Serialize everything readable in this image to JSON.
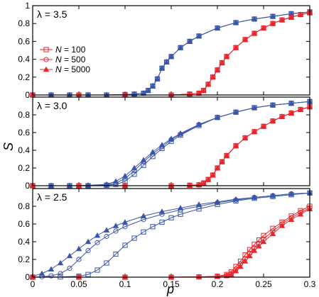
{
  "colors": {
    "blue": "#3a56a8",
    "red": "#e8262d",
    "frame": "#000000"
  },
  "legend": {
    "entries": [
      {
        "prefix": "N",
        "text": " = 100",
        "marker": "square"
      },
      {
        "prefix": "N",
        "text": " = 500",
        "marker": "circle"
      },
      {
        "prefix": "N",
        "text": " = 5000",
        "marker": "triangle"
      }
    ]
  },
  "chart_data": {
    "type": "line",
    "xlabel": "p",
    "ylabel": "S",
    "xlim": [
      0,
      0.3
    ],
    "xticks": [
      0,
      0.05,
      0.1,
      0.15,
      0.2,
      0.25,
      0.3
    ],
    "xtick_labels": [
      "0",
      "0.05",
      "0.1",
      "0.15",
      "0.2",
      "0.25",
      "0.3"
    ],
    "grid": false,
    "legend_position": "left, upper panel",
    "panels": [
      {
        "label": "λ = 3.5",
        "ylim": [
          0,
          1
        ],
        "yticks": [
          0,
          0.2,
          0.4,
          0.6,
          0.8,
          1
        ],
        "ytick_labels": [
          "0",
          "0.2",
          "0.4",
          "0.6",
          "0.8",
          "1"
        ],
        "series": [
          {
            "color": "blue",
            "marker": "square",
            "x": [
              0,
              0.02,
              0.04,
              0.06,
              0.08,
              0.1,
              0.11,
              0.12,
              0.125,
              0.13,
              0.135,
              0.14,
              0.145,
              0.15,
              0.16,
              0.17,
              0.18,
              0.2,
              0.22,
              0.24,
              0.26,
              0.28,
              0.3
            ],
            "y": [
              0,
              0,
              0,
              0,
              0,
              0.005,
              0.01,
              0.02,
              0.05,
              0.1,
              0.18,
              0.3,
              0.37,
              0.43,
              0.53,
              0.6,
              0.66,
              0.75,
              0.81,
              0.85,
              0.88,
              0.91,
              0.93
            ]
          },
          {
            "color": "blue",
            "marker": "circle",
            "x": [
              0,
              0.02,
              0.04,
              0.06,
              0.08,
              0.1,
              0.11,
              0.12,
              0.125,
              0.13,
              0.135,
              0.14,
              0.145,
              0.15,
              0.16,
              0.17,
              0.18,
              0.2,
              0.22,
              0.24,
              0.26,
              0.28,
              0.3
            ],
            "y": [
              0,
              0,
              0,
              0,
              0,
              0.005,
              0.01,
              0.02,
              0.05,
              0.1,
              0.18,
              0.3,
              0.37,
              0.43,
              0.53,
              0.6,
              0.66,
              0.75,
              0.81,
              0.85,
              0.88,
              0.91,
              0.93
            ]
          },
          {
            "color": "blue",
            "marker": "triangle",
            "x": [
              0,
              0.02,
              0.04,
              0.06,
              0.08,
              0.1,
              0.11,
              0.12,
              0.125,
              0.13,
              0.135,
              0.14,
              0.145,
              0.15,
              0.16,
              0.17,
              0.18,
              0.2,
              0.22,
              0.24,
              0.26,
              0.28,
              0.3
            ],
            "y": [
              0,
              0,
              0,
              0,
              0,
              0.005,
              0.01,
              0.02,
              0.05,
              0.1,
              0.18,
              0.3,
              0.37,
              0.43,
              0.53,
              0.6,
              0.66,
              0.75,
              0.81,
              0.85,
              0.88,
              0.91,
              0.93
            ]
          },
          {
            "color": "red",
            "marker": "square",
            "x": [
              0,
              0.05,
              0.1,
              0.15,
              0.17,
              0.18,
              0.185,
              0.19,
              0.195,
              0.2,
              0.205,
              0.21,
              0.22,
              0.23,
              0.24,
              0.25,
              0.26,
              0.27,
              0.28,
              0.29,
              0.3
            ],
            "y": [
              0,
              0,
              0,
              0,
              0.01,
              0.02,
              0.05,
              0.12,
              0.2,
              0.28,
              0.36,
              0.43,
              0.53,
              0.62,
              0.69,
              0.75,
              0.8,
              0.84,
              0.87,
              0.9,
              0.92
            ]
          },
          {
            "color": "red",
            "marker": "circle",
            "x": [
              0,
              0.05,
              0.1,
              0.15,
              0.17,
              0.18,
              0.185,
              0.19,
              0.195,
              0.2,
              0.205,
              0.21,
              0.22,
              0.23,
              0.24,
              0.25,
              0.26,
              0.27,
              0.28,
              0.29,
              0.3
            ],
            "y": [
              0,
              0,
              0,
              0,
              0.01,
              0.02,
              0.05,
              0.12,
              0.2,
              0.28,
              0.36,
              0.43,
              0.53,
              0.62,
              0.69,
              0.75,
              0.8,
              0.84,
              0.87,
              0.9,
              0.92
            ]
          },
          {
            "color": "red",
            "marker": "triangle",
            "x": [
              0,
              0.05,
              0.1,
              0.15,
              0.17,
              0.18,
              0.185,
              0.19,
              0.195,
              0.2,
              0.205,
              0.21,
              0.22,
              0.23,
              0.24,
              0.25,
              0.26,
              0.27,
              0.28,
              0.29,
              0.3
            ],
            "y": [
              0,
              0,
              0,
              0,
              0.01,
              0.02,
              0.05,
              0.12,
              0.2,
              0.28,
              0.36,
              0.43,
              0.53,
              0.62,
              0.69,
              0.75,
              0.8,
              0.84,
              0.87,
              0.9,
              0.92
            ]
          }
        ]
      },
      {
        "label": "λ = 3.0",
        "ylim": [
          0,
          1
        ],
        "yticks": [
          0,
          0.2,
          0.4,
          0.6,
          0.8
        ],
        "ytick_labels": [
          "0",
          "0.2",
          "0.4",
          "0.6",
          "0.8"
        ],
        "series": [
          {
            "color": "blue",
            "marker": "square",
            "x": [
              0,
              0.02,
              0.04,
              0.06,
              0.08,
              0.09,
              0.1,
              0.11,
              0.12,
              0.13,
              0.14,
              0.15,
              0.16,
              0.18,
              0.2,
              0.22,
              0.24,
              0.26,
              0.28,
              0.3
            ],
            "y": [
              0,
              0,
              0,
              0,
              0.005,
              0.015,
              0.05,
              0.13,
              0.23,
              0.33,
              0.42,
              0.5,
              0.57,
              0.68,
              0.77,
              0.83,
              0.88,
              0.91,
              0.93,
              0.95
            ]
          },
          {
            "color": "blue",
            "marker": "circle",
            "x": [
              0,
              0.02,
              0.04,
              0.06,
              0.08,
              0.09,
              0.1,
              0.11,
              0.12,
              0.13,
              0.14,
              0.15,
              0.16,
              0.18,
              0.2,
              0.22,
              0.24,
              0.26,
              0.28,
              0.3
            ],
            "y": [
              0,
              0,
              0,
              0,
              0.01,
              0.03,
              0.08,
              0.17,
              0.27,
              0.36,
              0.44,
              0.52,
              0.58,
              0.69,
              0.77,
              0.83,
              0.88,
              0.91,
              0.93,
              0.95
            ]
          },
          {
            "color": "blue",
            "marker": "triangle",
            "x": [
              0,
              0.02,
              0.04,
              0.06,
              0.08,
              0.09,
              0.1,
              0.11,
              0.12,
              0.13,
              0.14,
              0.15,
              0.16,
              0.18,
              0.2,
              0.22,
              0.24,
              0.26,
              0.28,
              0.3
            ],
            "y": [
              0,
              0,
              0,
              0.005,
              0.015,
              0.05,
              0.11,
              0.2,
              0.29,
              0.38,
              0.46,
              0.53,
              0.59,
              0.69,
              0.77,
              0.83,
              0.88,
              0.91,
              0.93,
              0.95
            ]
          },
          {
            "color": "red",
            "marker": "square",
            "x": [
              0,
              0.05,
              0.1,
              0.15,
              0.17,
              0.18,
              0.185,
              0.19,
              0.195,
              0.2,
              0.205,
              0.21,
              0.22,
              0.23,
              0.24,
              0.25,
              0.26,
              0.27,
              0.28,
              0.29,
              0.3
            ],
            "y": [
              0,
              0,
              0,
              0,
              0.005,
              0.01,
              0.03,
              0.07,
              0.12,
              0.2,
              0.27,
              0.34,
              0.45,
              0.54,
              0.61,
              0.67,
              0.73,
              0.78,
              0.82,
              0.86,
              0.89
            ]
          },
          {
            "color": "red",
            "marker": "circle",
            "x": [
              0,
              0.05,
              0.1,
              0.15,
              0.17,
              0.18,
              0.185,
              0.19,
              0.195,
              0.2,
              0.205,
              0.21,
              0.22,
              0.23,
              0.24,
              0.25,
              0.26,
              0.27,
              0.28,
              0.29,
              0.3
            ],
            "y": [
              0,
              0,
              0,
              0,
              0.005,
              0.01,
              0.03,
              0.07,
              0.12,
              0.2,
              0.27,
              0.34,
              0.45,
              0.54,
              0.61,
              0.67,
              0.73,
              0.78,
              0.82,
              0.86,
              0.89
            ]
          },
          {
            "color": "red",
            "marker": "triangle",
            "x": [
              0,
              0.05,
              0.1,
              0.15,
              0.17,
              0.18,
              0.185,
              0.19,
              0.195,
              0.2,
              0.205,
              0.21,
              0.22,
              0.23,
              0.24,
              0.25,
              0.26,
              0.27,
              0.28,
              0.29,
              0.3
            ],
            "y": [
              0,
              0,
              0,
              0,
              0.005,
              0.01,
              0.03,
              0.07,
              0.12,
              0.2,
              0.27,
              0.34,
              0.45,
              0.54,
              0.61,
              0.67,
              0.73,
              0.78,
              0.82,
              0.86,
              0.89
            ]
          }
        ]
      },
      {
        "label": "λ = 2.5",
        "ylim": [
          0,
          1
        ],
        "yticks": [
          0,
          0.2,
          0.4,
          0.6,
          0.8
        ],
        "ytick_labels": [
          "0",
          "0.2",
          "0.4",
          "0.6",
          "0.8"
        ],
        "series": [
          {
            "color": "blue",
            "marker": "square",
            "x": [
              0,
              0.03,
              0.05,
              0.06,
              0.07,
              0.08,
              0.09,
              0.1,
              0.11,
              0.12,
              0.13,
              0.14,
              0.15,
              0.16,
              0.18,
              0.2,
              0.22,
              0.24,
              0.26,
              0.28,
              0.3
            ],
            "y": [
              0,
              0.003,
              0.01,
              0.03,
              0.08,
              0.16,
              0.26,
              0.36,
              0.44,
              0.51,
              0.57,
              0.62,
              0.67,
              0.71,
              0.77,
              0.82,
              0.86,
              0.89,
              0.91,
              0.93,
              0.95
            ]
          },
          {
            "color": "blue",
            "marker": "circle",
            "x": [
              0,
              0.01,
              0.02,
              0.03,
              0.04,
              0.05,
              0.06,
              0.07,
              0.08,
              0.09,
              0.1,
              0.12,
              0.14,
              0.16,
              0.18,
              0.2,
              0.22,
              0.24,
              0.26,
              0.28,
              0.3
            ],
            "y": [
              0,
              0.005,
              0.015,
              0.04,
              0.1,
              0.2,
              0.3,
              0.39,
              0.46,
              0.52,
              0.57,
              0.65,
              0.71,
              0.76,
              0.8,
              0.84,
              0.87,
              0.9,
              0.92,
              0.94,
              0.95
            ]
          },
          {
            "color": "blue",
            "marker": "triangle",
            "x": [
              0,
              0.01,
              0.02,
              0.03,
              0.04,
              0.05,
              0.06,
              0.07,
              0.08,
              0.09,
              0.1,
              0.12,
              0.14,
              0.16,
              0.18,
              0.2,
              0.22,
              0.24,
              0.26,
              0.28,
              0.3
            ],
            "y": [
              0.01,
              0.04,
              0.09,
              0.16,
              0.24,
              0.32,
              0.4,
              0.47,
              0.53,
              0.58,
              0.62,
              0.69,
              0.74,
              0.78,
              0.82,
              0.85,
              0.88,
              0.9,
              0.92,
              0.94,
              0.95
            ]
          },
          {
            "color": "red",
            "marker": "square",
            "x": [
              0,
              0.05,
              0.1,
              0.15,
              0.18,
              0.2,
              0.21,
              0.215,
              0.22,
              0.225,
              0.23,
              0.235,
              0.24,
              0.245,
              0.25,
              0.26,
              0.27,
              0.28,
              0.29,
              0.3
            ],
            "y": [
              0,
              0,
              0,
              0,
              0.003,
              0.01,
              0.03,
              0.06,
              0.12,
              0.18,
              0.25,
              0.31,
              0.37,
              0.42,
              0.47,
              0.55,
              0.62,
              0.69,
              0.75,
              0.8
            ]
          },
          {
            "color": "red",
            "marker": "circle",
            "x": [
              0,
              0.05,
              0.1,
              0.15,
              0.18,
              0.2,
              0.21,
              0.215,
              0.22,
              0.225,
              0.23,
              0.235,
              0.24,
              0.245,
              0.25,
              0.26,
              0.27,
              0.28,
              0.29,
              0.3
            ],
            "y": [
              0,
              0,
              0,
              0,
              0.003,
              0.008,
              0.02,
              0.04,
              0.09,
              0.15,
              0.21,
              0.27,
              0.33,
              0.38,
              0.43,
              0.52,
              0.6,
              0.67,
              0.73,
              0.78
            ]
          },
          {
            "color": "red",
            "marker": "triangle",
            "x": [
              0,
              0.05,
              0.1,
              0.15,
              0.18,
              0.2,
              0.21,
              0.215,
              0.22,
              0.225,
              0.23,
              0.235,
              0.24,
              0.245,
              0.25,
              0.26,
              0.27,
              0.28,
              0.29,
              0.3
            ],
            "y": [
              0,
              0,
              0,
              0,
              0.002,
              0.006,
              0.015,
              0.03,
              0.07,
              0.12,
              0.18,
              0.24,
              0.3,
              0.35,
              0.4,
              0.49,
              0.58,
              0.65,
              0.71,
              0.77
            ]
          }
        ]
      }
    ]
  }
}
